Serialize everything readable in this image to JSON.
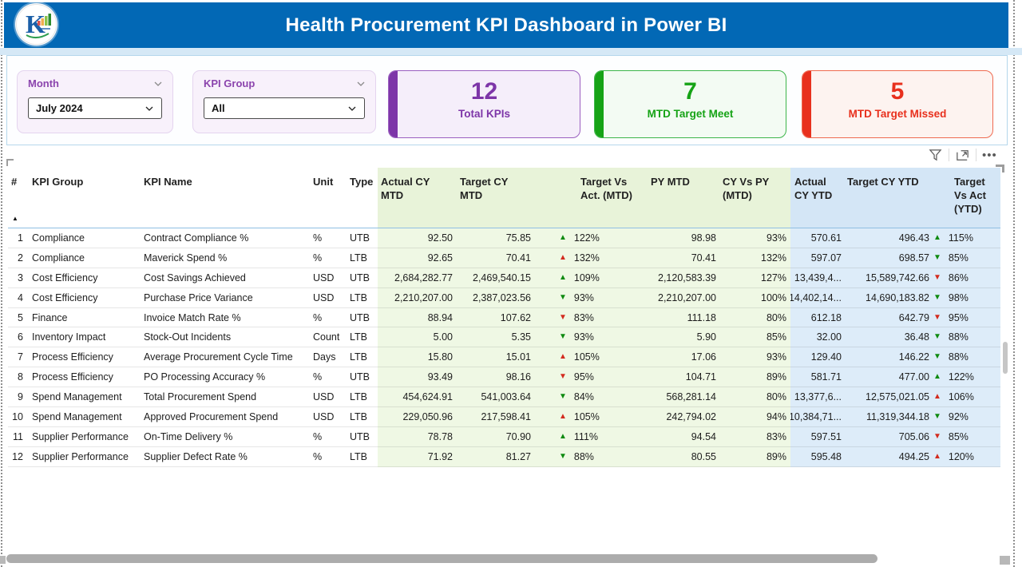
{
  "header": {
    "title": "Health Procurement KPI Dashboard in Power BI",
    "logo_letter": "K"
  },
  "slicers": {
    "month": {
      "label": "Month",
      "value": "July 2024"
    },
    "kpi_group": {
      "label": "KPI Group",
      "value": "All"
    }
  },
  "cards": [
    {
      "value": "12",
      "label": "Total KPIs",
      "accent": "#7d35a8",
      "border": "#9a5fc0",
      "bg": "#f5eefa"
    },
    {
      "value": "7",
      "label": "MTD Target Meet",
      "accent": "#16a316",
      "border": "#3cb54a",
      "bg": "#f3fbf3"
    },
    {
      "value": "5",
      "label": "MTD Target Missed",
      "accent": "#e8301d",
      "border": "#ef6a50",
      "bg": "#fdf3f0"
    }
  ],
  "toolbar": {
    "icons": [
      "filter-funnel",
      "open-in-focus-mode",
      "more-options"
    ]
  },
  "table": {
    "sort_indicator": "▲",
    "columns": [
      {
        "key": "num",
        "label": "#"
      },
      {
        "key": "kpi-group",
        "label": "KPI Group"
      },
      {
        "key": "kpi-name",
        "label": "KPI Name"
      },
      {
        "key": "unit",
        "label": "Unit"
      },
      {
        "key": "type",
        "label": "Type"
      },
      {
        "key": "actual-cy-mtd",
        "label": "Actual CY MTD"
      },
      {
        "key": "target-cy-mtd",
        "label": "Target CY MTD"
      },
      {
        "key": "target-vs-act-mtd",
        "label": "Target Vs Act. (MTD)"
      },
      {
        "key": "py-mtd",
        "label": "PY MTD"
      },
      {
        "key": "cy-vs-py-mtd",
        "label": "CY Vs PY (MTD)"
      },
      {
        "key": "actual-cy-ytd",
        "label": "Actual CY YTD"
      },
      {
        "key": "target-cy-ytd",
        "label": "Target CY YTD"
      },
      {
        "key": "target-vs-act-ytd",
        "label": "Target Vs Act (YTD)"
      }
    ],
    "rows": [
      {
        "num": "1",
        "kpi_group": "Compliance",
        "kpi_name": "Contract Compliance %",
        "unit": "%",
        "type": "UTB",
        "actual_cy_mtd": "92.50",
        "target_cy_mtd": "75.85",
        "tva_mtd": {
          "dir": "up",
          "tone": "green",
          "value": "122%"
        },
        "py_mtd": "98.98",
        "cy_vs_py_mtd": "93%",
        "actual_cy_ytd": "570.61",
        "target_cy_ytd": "496.43",
        "tva_ytd": {
          "dir": "up",
          "tone": "green",
          "value": "115%"
        }
      },
      {
        "num": "2",
        "kpi_group": "Compliance",
        "kpi_name": "Maverick Spend %",
        "unit": "%",
        "type": "LTB",
        "actual_cy_mtd": "92.65",
        "target_cy_mtd": "70.41",
        "tva_mtd": {
          "dir": "up",
          "tone": "red",
          "value": "132%"
        },
        "py_mtd": "70.41",
        "cy_vs_py_mtd": "132%",
        "actual_cy_ytd": "597.07",
        "target_cy_ytd": "698.57",
        "tva_ytd": {
          "dir": "down",
          "tone": "green",
          "value": "85%"
        }
      },
      {
        "num": "3",
        "kpi_group": "Cost Efficiency",
        "kpi_name": "Cost Savings Achieved",
        "unit": "USD",
        "type": "UTB",
        "actual_cy_mtd": "2,684,282.77",
        "target_cy_mtd": "2,469,540.15",
        "tva_mtd": {
          "dir": "up",
          "tone": "green",
          "value": "109%"
        },
        "py_mtd": "2,120,583.39",
        "cy_vs_py_mtd": "127%",
        "actual_cy_ytd": "13,439,4...",
        "target_cy_ytd": "15,589,742.66",
        "tva_ytd": {
          "dir": "down",
          "tone": "red",
          "value": "86%"
        }
      },
      {
        "num": "4",
        "kpi_group": "Cost Efficiency",
        "kpi_name": "Purchase Price Variance",
        "unit": "USD",
        "type": "LTB",
        "actual_cy_mtd": "2,210,207.00",
        "target_cy_mtd": "2,387,023.56",
        "tva_mtd": {
          "dir": "down",
          "tone": "green",
          "value": "93%"
        },
        "py_mtd": "2,210,207.00",
        "cy_vs_py_mtd": "100%",
        "actual_cy_ytd": "14,402,14...",
        "target_cy_ytd": "14,690,183.82",
        "tva_ytd": {
          "dir": "down",
          "tone": "green",
          "value": "98%"
        }
      },
      {
        "num": "5",
        "kpi_group": "Finance",
        "kpi_name": "Invoice Match Rate %",
        "unit": "%",
        "type": "UTB",
        "actual_cy_mtd": "88.94",
        "target_cy_mtd": "107.62",
        "tva_mtd": {
          "dir": "down",
          "tone": "red",
          "value": "83%"
        },
        "py_mtd": "111.18",
        "cy_vs_py_mtd": "80%",
        "actual_cy_ytd": "612.18",
        "target_cy_ytd": "642.79",
        "tva_ytd": {
          "dir": "down",
          "tone": "red",
          "value": "95%"
        }
      },
      {
        "num": "6",
        "kpi_group": "Inventory Impact",
        "kpi_name": "Stock-Out Incidents",
        "unit": "Count",
        "type": "LTB",
        "actual_cy_mtd": "5.00",
        "target_cy_mtd": "5.35",
        "tva_mtd": {
          "dir": "down",
          "tone": "green",
          "value": "93%"
        },
        "py_mtd": "5.90",
        "cy_vs_py_mtd": "85%",
        "actual_cy_ytd": "32.00",
        "target_cy_ytd": "36.48",
        "tva_ytd": {
          "dir": "down",
          "tone": "green",
          "value": "88%"
        }
      },
      {
        "num": "7",
        "kpi_group": "Process Efficiency",
        "kpi_name": "Average Procurement Cycle Time",
        "unit": "Days",
        "type": "LTB",
        "actual_cy_mtd": "15.80",
        "target_cy_mtd": "15.01",
        "tva_mtd": {
          "dir": "up",
          "tone": "red",
          "value": "105%"
        },
        "py_mtd": "17.06",
        "cy_vs_py_mtd": "93%",
        "actual_cy_ytd": "129.40",
        "target_cy_ytd": "146.22",
        "tva_ytd": {
          "dir": "down",
          "tone": "green",
          "value": "88%"
        }
      },
      {
        "num": "8",
        "kpi_group": "Process Efficiency",
        "kpi_name": "PO Processing Accuracy %",
        "unit": "%",
        "type": "UTB",
        "actual_cy_mtd": "93.49",
        "target_cy_mtd": "98.16",
        "tva_mtd": {
          "dir": "down",
          "tone": "red",
          "value": "95%"
        },
        "py_mtd": "104.71",
        "cy_vs_py_mtd": "89%",
        "actual_cy_ytd": "581.71",
        "target_cy_ytd": "477.00",
        "tva_ytd": {
          "dir": "up",
          "tone": "green",
          "value": "122%"
        }
      },
      {
        "num": "9",
        "kpi_group": "Spend Management",
        "kpi_name": "Total Procurement Spend",
        "unit": "USD",
        "type": "LTB",
        "actual_cy_mtd": "454,624.91",
        "target_cy_mtd": "541,003.64",
        "tva_mtd": {
          "dir": "down",
          "tone": "green",
          "value": "84%"
        },
        "py_mtd": "568,281.14",
        "cy_vs_py_mtd": "80%",
        "actual_cy_ytd": "13,377,6...",
        "target_cy_ytd": "12,575,021.05",
        "tva_ytd": {
          "dir": "up",
          "tone": "red",
          "value": "106%"
        }
      },
      {
        "num": "10",
        "kpi_group": "Spend Management",
        "kpi_name": "Approved Procurement Spend",
        "unit": "USD",
        "type": "LTB",
        "actual_cy_mtd": "229,050.96",
        "target_cy_mtd": "217,598.41",
        "tva_mtd": {
          "dir": "up",
          "tone": "red",
          "value": "105%"
        },
        "py_mtd": "242,794.02",
        "cy_vs_py_mtd": "94%",
        "actual_cy_ytd": "10,384,71...",
        "target_cy_ytd": "11,319,344.18",
        "tva_ytd": {
          "dir": "down",
          "tone": "green",
          "value": "92%"
        }
      },
      {
        "num": "11",
        "kpi_group": "Supplier Performance",
        "kpi_name": "On-Time Delivery %",
        "unit": "%",
        "type": "UTB",
        "actual_cy_mtd": "78.78",
        "target_cy_mtd": "70.90",
        "tva_mtd": {
          "dir": "up",
          "tone": "green",
          "value": "111%"
        },
        "py_mtd": "94.54",
        "cy_vs_py_mtd": "83%",
        "actual_cy_ytd": "597.51",
        "target_cy_ytd": "705.06",
        "tva_ytd": {
          "dir": "down",
          "tone": "red",
          "value": "85%"
        }
      },
      {
        "num": "12",
        "kpi_group": "Supplier Performance",
        "kpi_name": "Supplier Defect Rate %",
        "unit": "%",
        "type": "LTB",
        "actual_cy_mtd": "71.92",
        "target_cy_mtd": "81.27",
        "tva_mtd": {
          "dir": "down",
          "tone": "green",
          "value": "88%"
        },
        "py_mtd": "80.55",
        "cy_vs_py_mtd": "89%",
        "actual_cy_ytd": "595.48",
        "target_cy_ytd": "494.25",
        "tva_ytd": {
          "dir": "up",
          "tone": "red",
          "value": "120%"
        }
      }
    ]
  },
  "colors": {
    "header_blue": "#0268b5",
    "mtd_zone_header": "#e8f3d9",
    "mtd_zone_body": "#eff8e4",
    "ytd_zone_header": "#d4e6f6",
    "ytd_zone_body": "#ddecf9",
    "arrow_green": "#0e8a10",
    "arrow_red": "#d32b1f"
  }
}
